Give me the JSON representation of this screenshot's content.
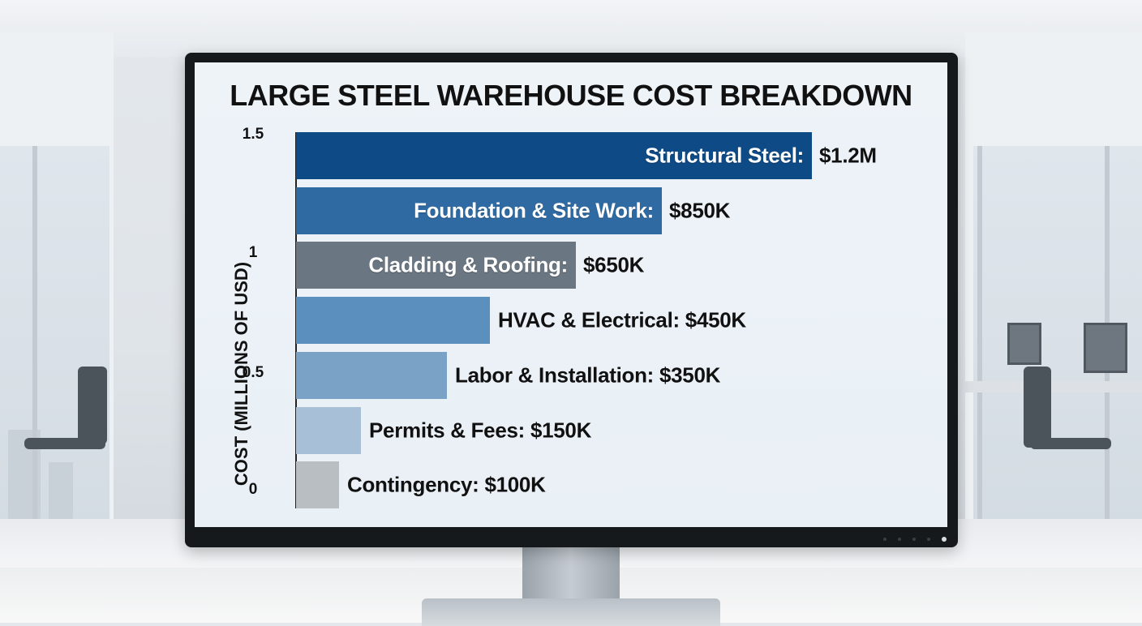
{
  "chart_data": {
    "type": "bar",
    "orientation": "horizontal",
    "title": "LARGE STEEL WAREHOUSE COST BREAKDOWN",
    "ylabel": "COST (MILLIONS OF USD)",
    "y_ticks": [
      "1.5",
      "1",
      "0.5",
      "0"
    ],
    "grid": false,
    "legend": "none",
    "categories": [
      "Structural Steel",
      "Foundation & Site Work",
      "Cladding & Roofing",
      "HVAC & Electrical",
      "Labor & Installation",
      "Permits & Fees",
      "Contingency"
    ],
    "values": [
      1.2,
      0.85,
      0.65,
      0.45,
      0.35,
      0.15,
      0.1
    ],
    "value_units": "millions of USD",
    "bars": [
      {
        "category": "Structural Steel",
        "value": 1.2,
        "label": "Structural Steel:",
        "value_label": "$1.2M",
        "color": "#0e4a86"
      },
      {
        "category": "Foundation & Site Work",
        "value": 0.85,
        "label": "Foundation & Site Work:",
        "value_label": "$850K",
        "color": "#2f6aa3"
      },
      {
        "category": "Cladding & Roofing",
        "value": 0.65,
        "label": "Cladding & Roofing:",
        "value_label": "$650K",
        "color": "#6a7682"
      },
      {
        "category": "HVAC & Electrical",
        "value": 0.45,
        "label": "HVAC & Electrical:",
        "value_label": "$450K",
        "color": "#5b8fbd"
      },
      {
        "category": "Labor & Installation",
        "value": 0.35,
        "label": "Labor & Installation:",
        "value_label": "$350K",
        "color": "#7aa1c6"
      },
      {
        "category": "Permits & Fees",
        "value": 0.15,
        "label": "Permits & Fees:",
        "value_label": "$150K",
        "color": "#a8bfd8"
      },
      {
        "category": "Contingency",
        "value": 0.1,
        "label": "Contingency:",
        "value_label": "$100K",
        "color": "#b9bec3"
      }
    ]
  }
}
